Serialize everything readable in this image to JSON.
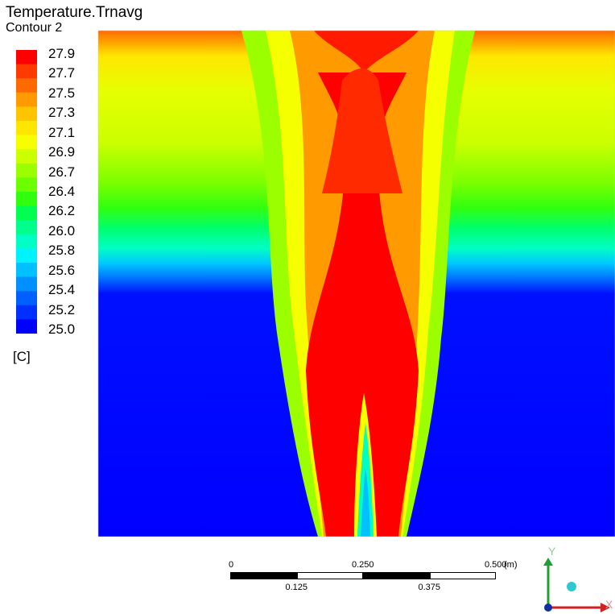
{
  "title": "Temperature.Trnavg",
  "subtitle": "Contour 2",
  "chart_data": {
    "type": "heatmap",
    "variable": "Temperature.Trnavg",
    "unit": "[C]",
    "colorbar": {
      "min": 25.0,
      "max": 27.9,
      "levels": 20,
      "tick_labels": [
        "27.9",
        "27.7",
        "27.5",
        "27.3",
        "27.1",
        "26.9",
        "26.7",
        "26.4",
        "26.2",
        "26.0",
        "25.8",
        "25.6",
        "25.4",
        "25.2",
        "25.0"
      ],
      "colors_top_to_bottom": [
        "#ff0000",
        "#ff3a00",
        "#ff6a00",
        "#ff9a00",
        "#ffc400",
        "#ffe600",
        "#f6ff00",
        "#ccff00",
        "#9cff00",
        "#6cff00",
        "#30ff10",
        "#00ff50",
        "#00ff8c",
        "#00ffc4",
        "#00f2ff",
        "#00c0ff",
        "#0090ff",
        "#0060ff",
        "#0030ff",
        "#0000ff"
      ]
    },
    "scale_bar": {
      "unit": "(m)",
      "top_labels": [
        "0",
        "0.250",
        "0.500"
      ],
      "bottom_labels": [
        "0.125",
        "0.375"
      ]
    },
    "axes_triad": {
      "labels": [
        "Y",
        "X"
      ]
    }
  }
}
